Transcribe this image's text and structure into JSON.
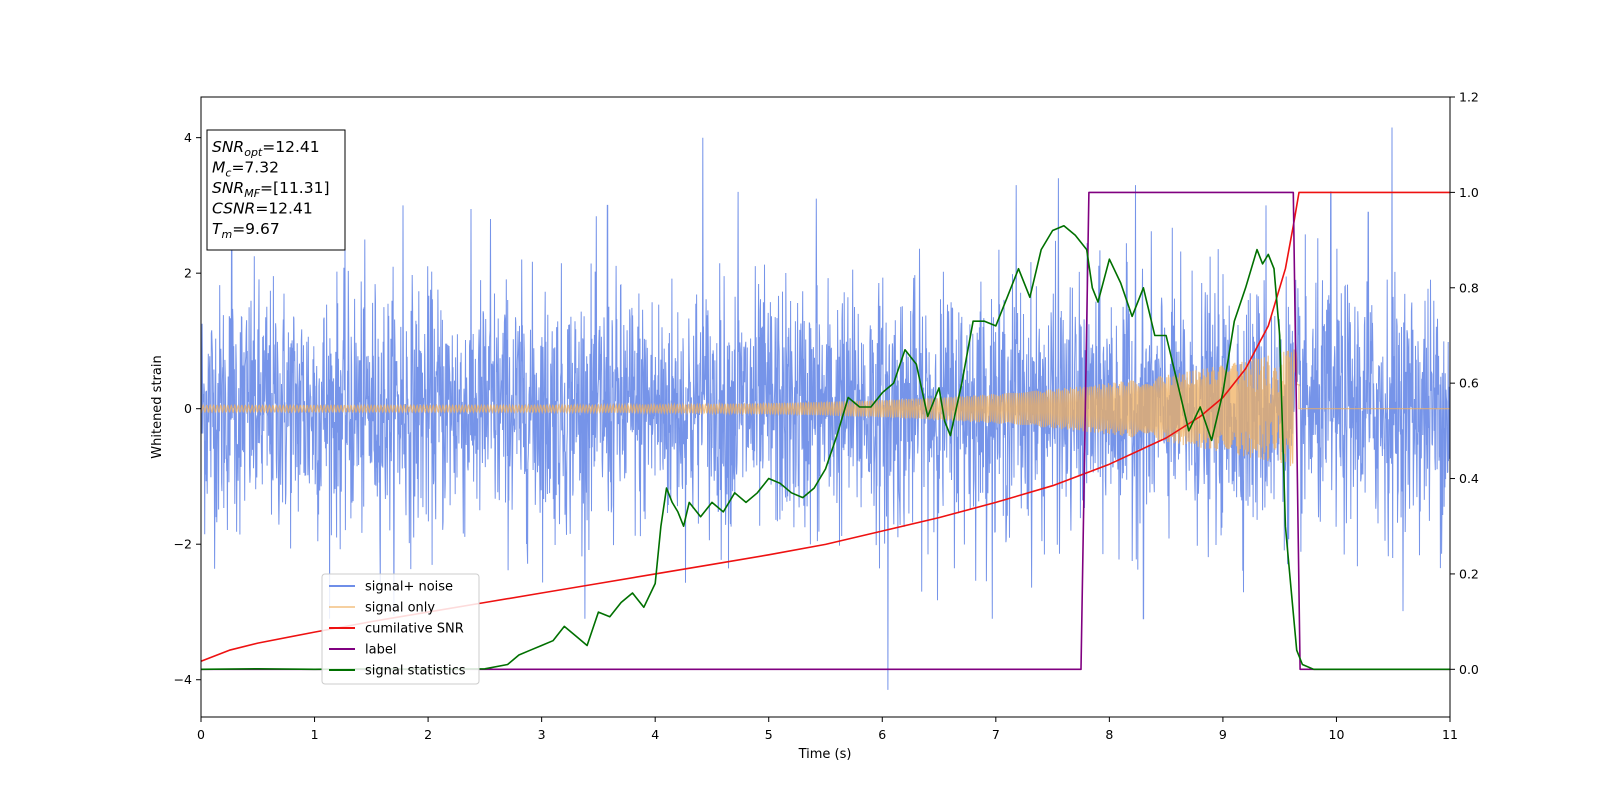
{
  "chart_data": {
    "type": "line",
    "title": "",
    "xlabel": "Time (s)",
    "ylabel": "Whitened strain",
    "y2label": "",
    "xlim": [
      0,
      11
    ],
    "ylim": [
      -4.55,
      4.6
    ],
    "y2lim": [
      -0.1,
      1.2
    ],
    "x_ticks": [
      0,
      1,
      2,
      3,
      4,
      5,
      6,
      7,
      8,
      9,
      10,
      11
    ],
    "y_ticks": [
      -4,
      -2,
      0,
      2,
      4
    ],
    "y2_ticks": [
      0.0,
      0.2,
      0.4,
      0.6,
      0.8,
      1.0,
      1.2
    ],
    "legend_placement": "lower-left",
    "grid": false,
    "info_box": {
      "lines": [
        {
          "base": "SNR",
          "sub": "opt",
          "rest": "=12.41"
        },
        {
          "base": "M",
          "sub": "c",
          "rest": "=7.32"
        },
        {
          "base": "SNR",
          "sub": "MF",
          "rest": "=[11.31]"
        },
        {
          "base": "CSNR",
          "sub": "",
          "rest": "=12.41"
        },
        {
          "base": "T",
          "sub": "m",
          "rest": "=9.67"
        }
      ]
    },
    "series": [
      {
        "name": "signal+ noise",
        "color": "#6f8ee8",
        "axis": "left",
        "kind": "noise",
        "sigma": 0.9,
        "x_range": [
          0,
          11
        ],
        "spikes": [
          [
            0.27,
            2.6
          ],
          [
            1.78,
            3.0
          ],
          [
            2.55,
            2.8
          ],
          [
            3.58,
            3.0
          ],
          [
            4.42,
            4.0
          ],
          [
            4.73,
            3.2
          ],
          [
            5.42,
            3.1
          ],
          [
            6.05,
            -4.15
          ],
          [
            7.18,
            3.3
          ],
          [
            7.55,
            3.4
          ],
          [
            8.23,
            3.3
          ],
          [
            9.38,
            3.0
          ],
          [
            9.95,
            3.2
          ],
          [
            10.49,
            4.15
          ],
          [
            10.28,
            2.9
          ],
          [
            8.3,
            -3.1
          ]
        ]
      },
      {
        "name": "signal only",
        "color": "#f0b060",
        "axis": "left",
        "kind": "chirp",
        "x_range": [
          0,
          9.67
        ],
        "amplitude_start": 0.05,
        "amplitude_end": 0.9
      },
      {
        "name": "cumilative SNR",
        "color": "#ee1111",
        "axis": "right",
        "x": [
          0,
          0.25,
          0.5,
          1.0,
          1.5,
          2.0,
          2.5,
          3.0,
          3.5,
          4.0,
          4.5,
          5.0,
          5.5,
          6.0,
          6.5,
          7.0,
          7.5,
          8.0,
          8.5,
          8.8,
          9.0,
          9.2,
          9.4,
          9.55,
          9.62,
          9.67,
          9.7,
          11
        ],
        "y": [
          0.017,
          0.04,
          0.055,
          0.078,
          0.1,
          0.12,
          0.14,
          0.16,
          0.18,
          0.2,
          0.22,
          0.24,
          0.262,
          0.29,
          0.318,
          0.35,
          0.385,
          0.43,
          0.485,
          0.53,
          0.57,
          0.63,
          0.72,
          0.84,
          0.93,
          1.0,
          1.0,
          1.0
        ]
      },
      {
        "name": "label",
        "color": "#800080",
        "axis": "right",
        "x": [
          0,
          7.75,
          7.82,
          9.62,
          9.68,
          11
        ],
        "y": [
          0.0,
          0.0,
          1.0,
          1.0,
          0.0,
          0.0
        ]
      },
      {
        "name": "signal statistics",
        "color": "#007000",
        "axis": "right",
        "x": [
          0,
          0.5,
          1.0,
          1.5,
          2.0,
          2.5,
          2.7,
          2.8,
          2.9,
          3.0,
          3.1,
          3.2,
          3.3,
          3.4,
          3.5,
          3.6,
          3.7,
          3.8,
          3.9,
          4.0,
          4.05,
          4.1,
          4.15,
          4.2,
          4.25,
          4.3,
          4.4,
          4.5,
          4.6,
          4.7,
          4.8,
          4.9,
          5.0,
          5.1,
          5.2,
          5.3,
          5.4,
          5.5,
          5.6,
          5.7,
          5.8,
          5.9,
          6.0,
          6.1,
          6.2,
          6.3,
          6.4,
          6.5,
          6.55,
          6.6,
          6.7,
          6.8,
          6.9,
          7.0,
          7.1,
          7.2,
          7.3,
          7.4,
          7.5,
          7.6,
          7.7,
          7.8,
          7.85,
          7.9,
          8.0,
          8.1,
          8.2,
          8.3,
          8.4,
          8.5,
          8.6,
          8.7,
          8.8,
          8.9,
          9.0,
          9.1,
          9.2,
          9.3,
          9.35,
          9.4,
          9.45,
          9.5,
          9.55,
          9.6,
          9.65,
          9.7,
          9.8,
          10.0,
          11
        ],
        "y": [
          0.0,
          0.001,
          0.0,
          0.001,
          0.0,
          0.001,
          0.01,
          0.03,
          0.04,
          0.05,
          0.06,
          0.09,
          0.07,
          0.05,
          0.12,
          0.11,
          0.14,
          0.16,
          0.13,
          0.18,
          0.3,
          0.38,
          0.35,
          0.33,
          0.3,
          0.35,
          0.32,
          0.35,
          0.33,
          0.37,
          0.35,
          0.37,
          0.4,
          0.39,
          0.37,
          0.36,
          0.38,
          0.42,
          0.49,
          0.57,
          0.55,
          0.55,
          0.58,
          0.6,
          0.67,
          0.64,
          0.53,
          0.59,
          0.52,
          0.49,
          0.6,
          0.73,
          0.73,
          0.72,
          0.78,
          0.84,
          0.78,
          0.88,
          0.92,
          0.93,
          0.91,
          0.88,
          0.8,
          0.77,
          0.86,
          0.81,
          0.74,
          0.8,
          0.7,
          0.7,
          0.6,
          0.5,
          0.55,
          0.48,
          0.58,
          0.73,
          0.8,
          0.88,
          0.85,
          0.87,
          0.84,
          0.7,
          0.3,
          0.17,
          0.04,
          0.01,
          0.0,
          0.0,
          0.0
        ]
      }
    ]
  }
}
